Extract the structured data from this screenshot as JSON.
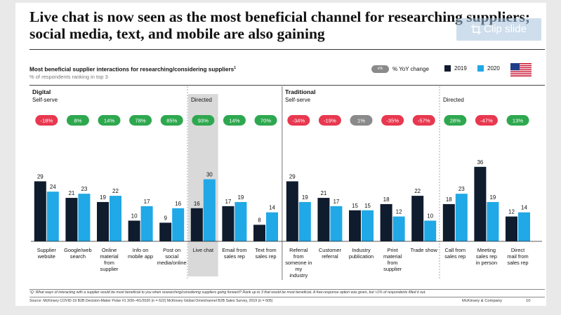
{
  "slide": {
    "title": "Live chat is now seen as the most beneficial channel for researching suppliers; social media, text, and mobile are also gaining",
    "subtitle": "Most beneficial supplier interactions for researching/considering suppliers",
    "subtitle_sup": "1",
    "subnote": "% of respondents ranking in top 3",
    "footnote": "¹Q: What ways of interacting with a supplier would be most beneficial to you when researching/considering suppliers going forward? Rank up to 3 that would be most beneficial. A free-response option was given, but <1% of respondents filled it out.",
    "source": "Source: McKinsey COVID-19 B2B Decision-Maker Pulse #1 3/30–4/1/2020 (n = 622) McKinsey Global Omnichannel B2B Sales Survey, 2019 (n = 605)",
    "brand": "McKinsey & Company",
    "page_number": "10"
  },
  "clip_button": {
    "label": "Clip slide",
    "icon": "crop-icon"
  },
  "legend": {
    "yoy_oval_text": "x%",
    "yoy_label": "% YoY change",
    "label_2019": "2019",
    "label_2020": "2020",
    "flag_icon": "us-flag-icon"
  },
  "colors": {
    "color_2019": "#0f1c2e",
    "color_2020": "#21a8e6",
    "positive": "#2ea84f",
    "negative": "#e8384f",
    "neutral": "#8a8a8a",
    "highlight": "#d9d9d9"
  },
  "chart_data": {
    "type": "bar",
    "section_labels": [
      "Digital",
      "Traditional"
    ],
    "group_labels": [
      "Self-serve",
      "Directed",
      "Self-serve",
      "Directed"
    ],
    "categories": [
      "Supplier website",
      "Google/web search",
      "Online material from supplier",
      "Info on mobile app",
      "Post on social media/online",
      "Live chat",
      "Email from sales rep",
      "Text from sales rep",
      "Referral from someone in my industry",
      "Customer referral",
      "Industry publication",
      "Print material from supplier",
      "Trade show",
      "Call from sales rep",
      "Meeting sales rep in person",
      "Direct mail from sales rep"
    ],
    "series": [
      {
        "name": "2019",
        "values": [
          29,
          21,
          19,
          10,
          9,
          16,
          17,
          8,
          29,
          21,
          15,
          18,
          22,
          18,
          36,
          12
        ]
      },
      {
        "name": "2020",
        "values": [
          24,
          23,
          22,
          17,
          16,
          30,
          19,
          14,
          19,
          17,
          15,
          12,
          10,
          23,
          19,
          14
        ]
      }
    ],
    "yoy_change": [
      "-18%",
      "8%",
      "14%",
      "78%",
      "85%",
      "93%",
      "14%",
      "70%",
      "-34%",
      "-19%",
      "1%",
      "-35%",
      "-57%",
      "28%",
      "-47%",
      "13%"
    ],
    "highlighted_category": "Live chat",
    "ylim": [
      0,
      40
    ]
  }
}
